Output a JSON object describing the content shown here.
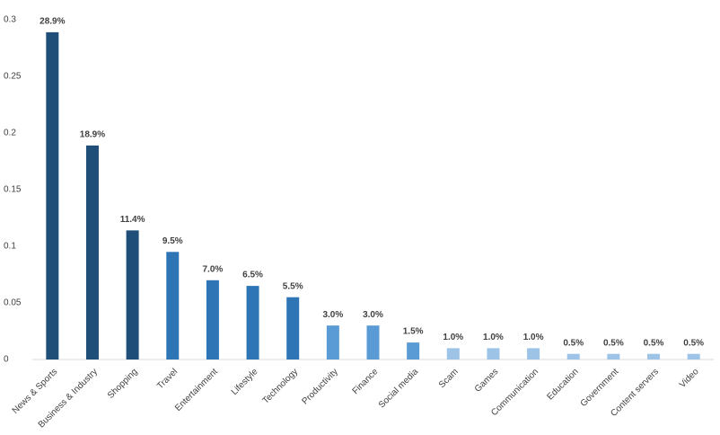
{
  "chart_data": {
    "type": "bar",
    "categories": [
      "News & Sports",
      "Business & Industry",
      "Shopping",
      "Travel",
      "Entertainment",
      "Lifestyle",
      "Technology",
      "Productivity",
      "Finance",
      "Social media",
      "Scam",
      "Games",
      "Communication",
      "Education",
      "Government",
      "Content servers",
      "Video"
    ],
    "values": [
      0.289,
      0.189,
      0.114,
      0.095,
      0.07,
      0.065,
      0.055,
      0.03,
      0.03,
      0.015,
      0.01,
      0.01,
      0.01,
      0.005,
      0.005,
      0.005,
      0.005
    ],
    "value_labels": [
      "28.9%",
      "18.9%",
      "11.4%",
      "9.5%",
      "7.0%",
      "6.5%",
      "5.5%",
      "3.0%",
      "3.0%",
      "1.5%",
      "1.0%",
      "1.0%",
      "1.0%",
      "0.5%",
      "0.5%",
      "0.5%",
      "0.5%"
    ],
    "colors": [
      "#1f4e79",
      "#1f4e79",
      "#1f4e79",
      "#2e75b6",
      "#2e75b6",
      "#2e75b6",
      "#2e75b6",
      "#5b9bd5",
      "#5b9bd5",
      "#5b9bd5",
      "#9dc3e6",
      "#9dc3e6",
      "#9dc3e6",
      "#9dc3e6",
      "#9dc3e6",
      "#9dc3e6",
      "#9dc3e6"
    ],
    "ylim": [
      0,
      0.3
    ],
    "yticks": [
      0,
      0.05,
      0.1,
      0.15,
      0.2,
      0.25,
      0.3
    ],
    "grid": false
  }
}
